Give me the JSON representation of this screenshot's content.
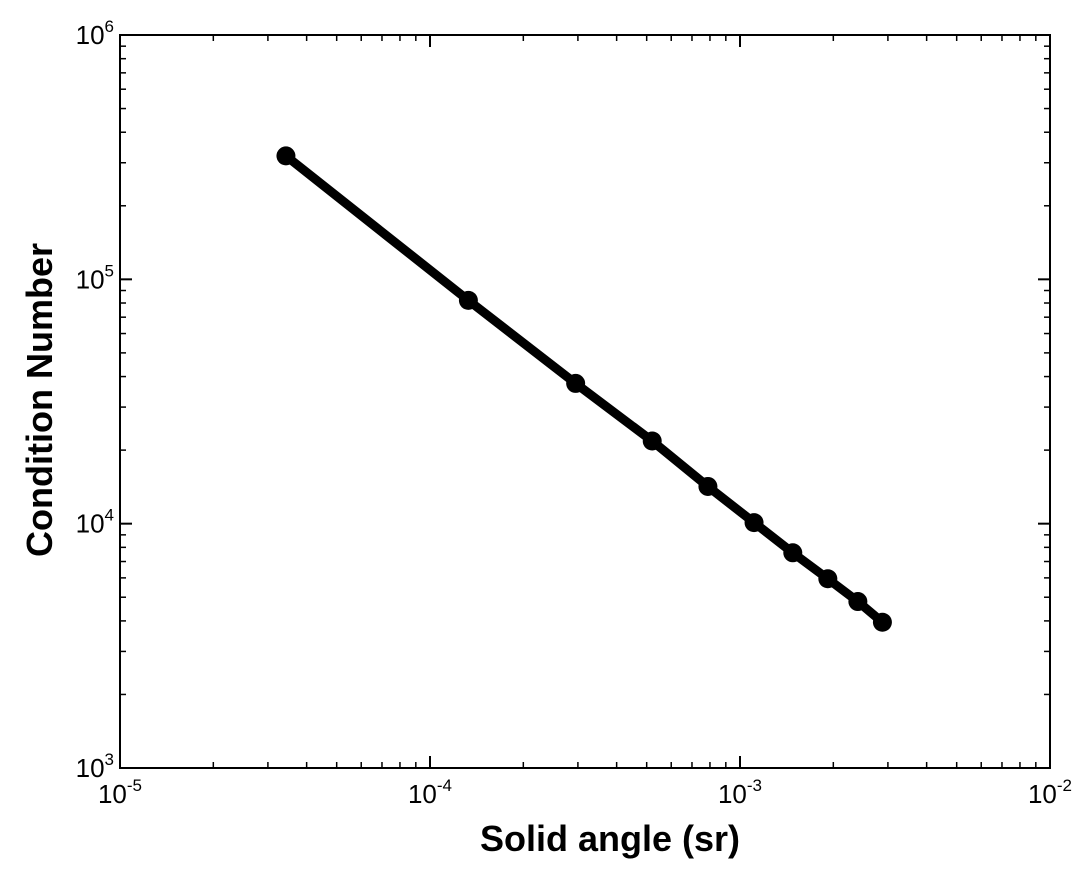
{
  "chart_data": {
    "type": "line",
    "title": "",
    "xlabel": "Solid angle (sr)",
    "ylabel": "Condition Number",
    "x_scale": "log",
    "y_scale": "log",
    "xlim": [
      1e-05,
      0.01
    ],
    "ylim": [
      1000,
      1000000
    ],
    "grid": false,
    "legend": "none",
    "line_color": "#000000",
    "marker_color": "#000000",
    "x_ticks": [
      {
        "base": "10",
        "exp": "-5",
        "value": 1e-05
      },
      {
        "base": "10",
        "exp": "-4",
        "value": 0.0001
      },
      {
        "base": "10",
        "exp": "-3",
        "value": 0.001
      },
      {
        "base": "10",
        "exp": "-2",
        "value": 0.01
      }
    ],
    "y_ticks": [
      {
        "base": "10",
        "exp": "3",
        "value": 1000
      },
      {
        "base": "10",
        "exp": "4",
        "value": 10000
      },
      {
        "base": "10",
        "exp": "5",
        "value": 100000
      },
      {
        "base": "10",
        "exp": "6",
        "value": 1000000
      }
    ],
    "series": [
      {
        "x": [
          3.43e-05,
          0.000133,
          0.000295,
          0.000521,
          0.000788,
          0.00111,
          0.00148,
          0.00192,
          0.0024,
          0.00288
        ],
        "y": [
          320000,
          82000,
          37500,
          21800,
          14200,
          10100,
          7600,
          5950,
          4800,
          3950
        ]
      }
    ]
  }
}
